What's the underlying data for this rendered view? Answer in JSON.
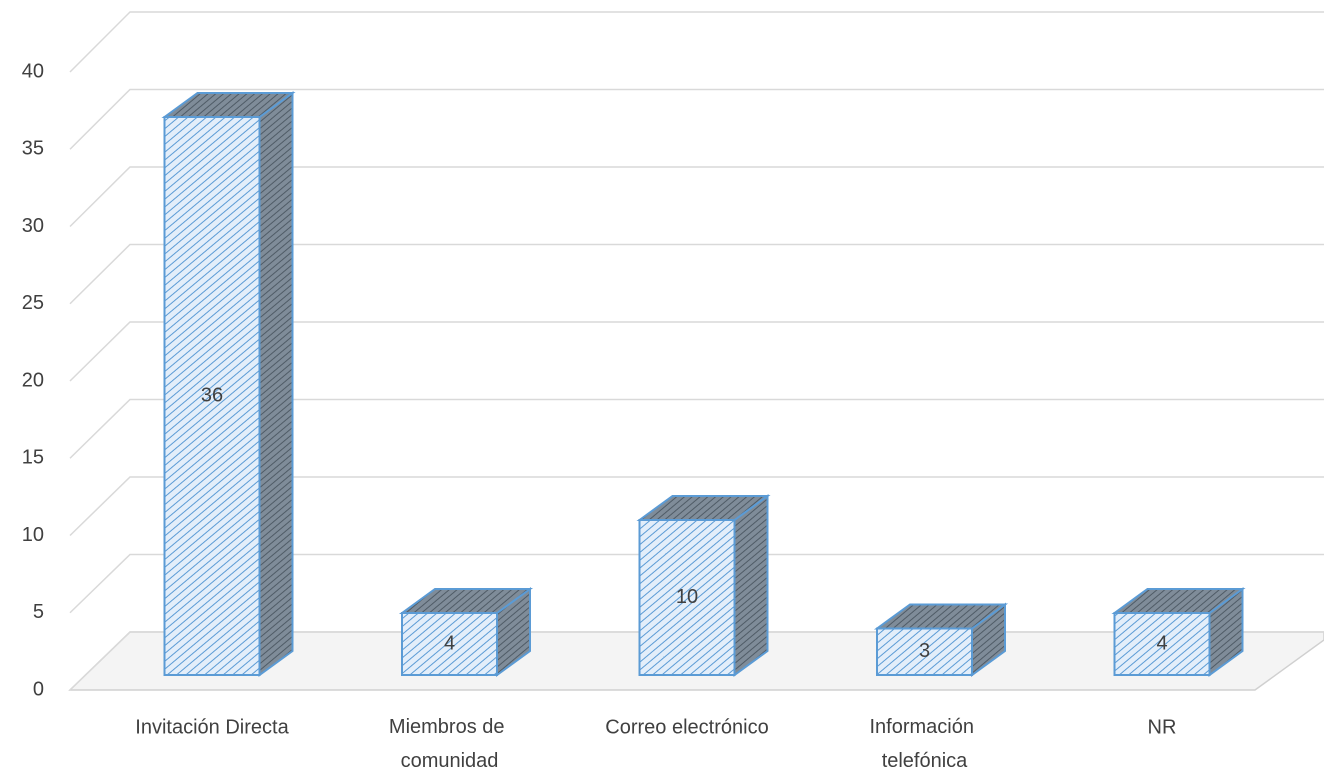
{
  "chart_data": {
    "type": "bar3d",
    "categories": [
      "Invitación Directa",
      "Miembros de comunidad",
      "Correo electrónico",
      "Información telefónica",
      "NR"
    ],
    "values": [
      36,
      4,
      10,
      3,
      4
    ],
    "color": "#5b9bd5",
    "ylim": [
      0,
      40
    ],
    "yticks": [
      0,
      5,
      10,
      15,
      20,
      25,
      30,
      35,
      40
    ],
    "grid": true
  }
}
